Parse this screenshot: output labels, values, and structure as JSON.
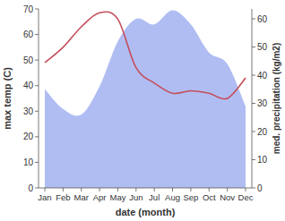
{
  "chart_data": {
    "type": "line",
    "x_label": "date (month)",
    "y_label": "max temp (C)",
    "y2_label": "med. precipitation (kg/m2)",
    "categories": [
      "Jan",
      "Feb",
      "Mar",
      "Apr",
      "May",
      "Jun",
      "Jul",
      "Aug",
      "Sep",
      "Oct",
      "Nov",
      "Dec"
    ],
    "series": [
      {
        "name": "max temp",
        "type": "line",
        "color": "#c44e5a",
        "values": [
          49,
          55,
          63,
          68.5,
          66,
          47,
          41,
          37,
          38,
          37,
          35,
          43
        ]
      },
      {
        "name": "med. precipitation",
        "type": "area",
        "axis": "y2",
        "color": "#b0bdf3",
        "values": [
          35,
          28,
          26,
          36,
          52,
          60,
          58,
          63,
          58,
          48,
          44,
          29
        ]
      }
    ],
    "ylim": [
      0,
      70
    ],
    "yticks": [
      0,
      10,
      20,
      30,
      40,
      50,
      60,
      70
    ],
    "y2lim": [
      0,
      63.5
    ],
    "y2ticks": [
      0,
      10,
      20,
      30,
      40,
      50,
      60
    ],
    "grid": false
  }
}
